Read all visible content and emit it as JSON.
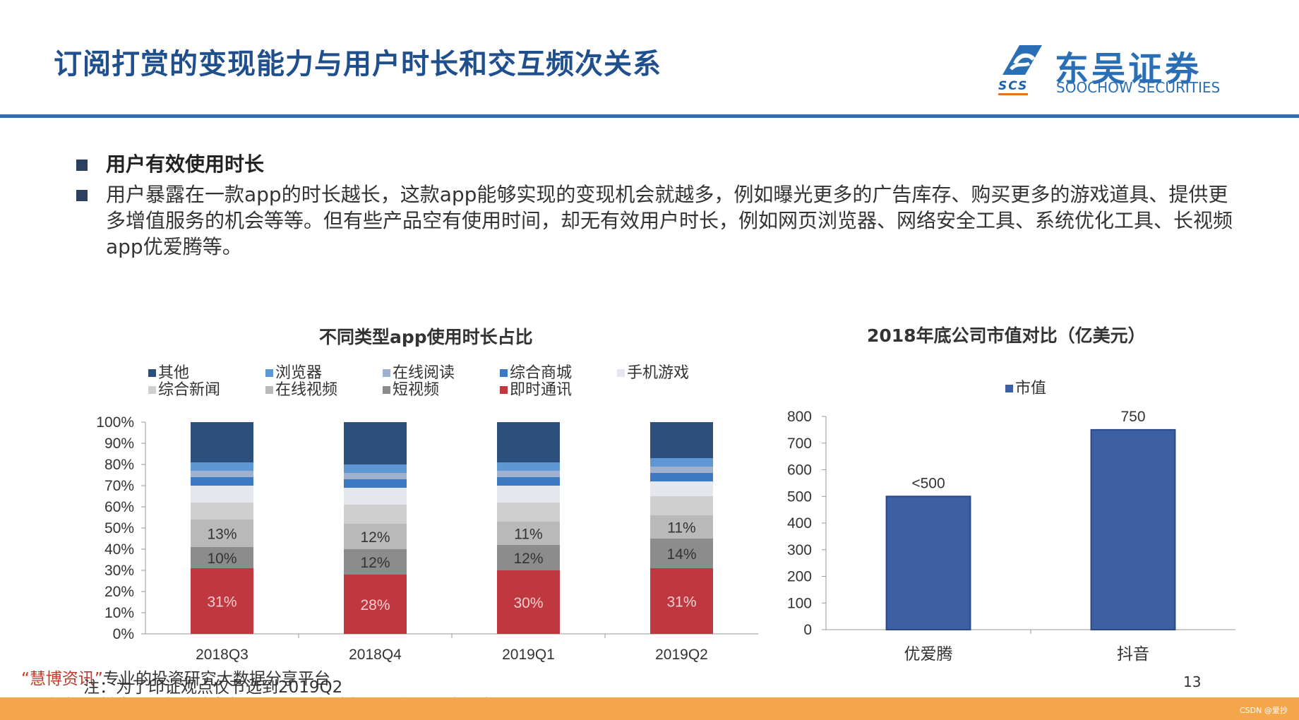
{
  "page": {
    "title": "订阅打赏的变现能力与用户时长和交互频次关系",
    "page_number": "13"
  },
  "logo": {
    "cn": "东吴证券",
    "scs": "SCS",
    "en": "SOOCHOW SECURITIES",
    "colors": {
      "blue": "#2a6fb5",
      "orange": "#e8711c"
    }
  },
  "bullets": [
    {
      "text": "用户有效使用时长"
    },
    {
      "text": "用户暴露在一款app的时长越长，这款app能够实现的变现机会就越多，例如曝光更多的广告库存、购买更多的游戏道具、提供更多增值服务的机会等等。但有些产品空有使用时间，却无有效用户时长，例如网页浏览器、网络安全工具、系统优化工具、长视频app优爱腾等。"
    }
  ],
  "footer": {
    "watermark_brand": "“慧博资讯”",
    "watermark_rest": "专业的投资研究大数据分享平台",
    "note": "注：为了印证观点仅节选到2019Q2",
    "watermark_link": "点击进入  http://www.hibor.com.cn",
    "source": "资料来源：极光大数据，wind，新浪新闻，东吴证券研究所"
  },
  "credit": "CSDN @爱抄",
  "chart_data": [
    {
      "type": "bar",
      "stacked": true,
      "percent": true,
      "title": "不同类型app使用时长占比",
      "categories": [
        "2018Q3",
        "2018Q4",
        "2019Q1",
        "2019Q2"
      ],
      "ylim": [
        0,
        100
      ],
      "yticks": [
        "0%",
        "10%",
        "20%",
        "30%",
        "40%",
        "50%",
        "60%",
        "70%",
        "80%",
        "90%",
        "100%"
      ],
      "legend_position": "top",
      "series": [
        {
          "name": "即时通讯",
          "color": "#c0383f",
          "values": [
            31,
            28,
            30,
            31
          ],
          "labels": [
            "31%",
            "28%",
            "30%",
            "31%"
          ]
        },
        {
          "name": "短视频",
          "color": "#8c8c8c",
          "values": [
            10,
            12,
            12,
            14
          ],
          "labels": [
            "10%",
            "12%",
            "12%",
            "14%"
          ]
        },
        {
          "name": "在线视频",
          "color": "#b9b9b9",
          "values": [
            13,
            12,
            11,
            11
          ],
          "labels": [
            "13%",
            "12%",
            "11%",
            "11%"
          ]
        },
        {
          "name": "综合新闻",
          "color": "#cfcfcf",
          "values": [
            8,
            9,
            9,
            9
          ],
          "labels": [
            "",
            "",
            "",
            ""
          ]
        },
        {
          "name": "手机游戏",
          "color": "#e4e8ee",
          "values": [
            8,
            8,
            8,
            7
          ],
          "labels": [
            "",
            "",
            "",
            ""
          ]
        },
        {
          "name": "综合商城",
          "color": "#3c79c0",
          "values": [
            4,
            4,
            4,
            4
          ],
          "labels": [
            "",
            "",
            "",
            ""
          ]
        },
        {
          "name": "在线阅读",
          "color": "#9fb1cf",
          "values": [
            3,
            3,
            3,
            3
          ],
          "labels": [
            "",
            "",
            "",
            ""
          ]
        },
        {
          "name": "浏览器",
          "color": "#5f96d4",
          "values": [
            4,
            4,
            4,
            4
          ],
          "labels": [
            "",
            "",
            "",
            ""
          ]
        },
        {
          "name": "其他",
          "color": "#2d4f7c",
          "values": [
            19,
            20,
            19,
            17
          ],
          "labels": [
            "",
            "",
            "",
            ""
          ]
        }
      ],
      "legend_order": [
        "其他",
        "浏览器",
        "在线阅读",
        "综合商城",
        "手机游戏",
        "综合新闻",
        "在线视频",
        "短视频",
        "即时通讯"
      ]
    },
    {
      "type": "bar",
      "title": "2018年底公司市值对比（亿美元）",
      "categories": [
        "优爱腾",
        "抖音"
      ],
      "series": [
        {
          "name": "市值",
          "color": "#3d5fa3",
          "values": [
            500,
            750
          ],
          "labels": [
            "<500",
            "750"
          ]
        }
      ],
      "ylim": [
        0,
        800
      ],
      "yticks": [
        "0",
        "100",
        "200",
        "300",
        "400",
        "500",
        "600",
        "700",
        "800"
      ],
      "legend_position": "top"
    }
  ]
}
